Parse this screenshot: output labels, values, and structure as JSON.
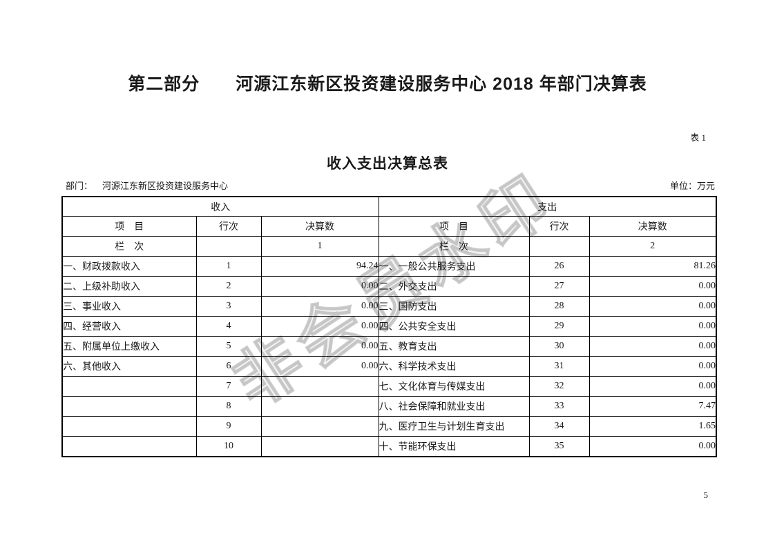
{
  "page": {
    "part_title": "第二部分　　河源江东新区投资建设服务中心 2018 年部门决算表",
    "table_label": "表 1",
    "table_title": "收入支出决算总表",
    "department_label": "部门：",
    "department_value": "河源江东新区投资建设服务中心",
    "unit_label": "单位：万元",
    "watermark": "非会员水印",
    "page_number": "5"
  },
  "table": {
    "income_header": "收入",
    "expenditure_header": "支出",
    "col_headers": {
      "item": "项　目",
      "line_no": "行次",
      "amount": "决算数"
    },
    "column_index_label": "栏　次",
    "income_col_index": "1",
    "expenditure_col_index": "2",
    "rows": [
      {
        "income_item": "一、财政拨款收入",
        "income_line": "1",
        "income_amount": "94.24",
        "exp_item": "一、一般公共服务支出",
        "exp_line": "26",
        "exp_amount": "81.26"
      },
      {
        "income_item": "二、上级补助收入",
        "income_line": "2",
        "income_amount": "0.00",
        "exp_item": "二、外交支出",
        "exp_line": "27",
        "exp_amount": "0.00"
      },
      {
        "income_item": "三、事业收入",
        "income_line": "3",
        "income_amount": "0.00",
        "exp_item": "三、国防支出",
        "exp_line": "28",
        "exp_amount": "0.00"
      },
      {
        "income_item": "四、经营收入",
        "income_line": "4",
        "income_amount": "0.00",
        "exp_item": "四、公共安全支出",
        "exp_line": "29",
        "exp_amount": "0.00"
      },
      {
        "income_item": "五、附属单位上缴收入",
        "income_line": "5",
        "income_amount": "0.00",
        "exp_item": "五、教育支出",
        "exp_line": "30",
        "exp_amount": "0.00"
      },
      {
        "income_item": "六、其他收入",
        "income_line": "6",
        "income_amount": "0.00",
        "exp_item": "六、科学技术支出",
        "exp_line": "31",
        "exp_amount": "0.00"
      },
      {
        "income_item": "",
        "income_line": "7",
        "income_amount": "",
        "exp_item": "七、文化体育与传媒支出",
        "exp_line": "32",
        "exp_amount": "0.00"
      },
      {
        "income_item": "",
        "income_line": "8",
        "income_amount": "",
        "exp_item": "八、社会保障和就业支出",
        "exp_line": "33",
        "exp_amount": "7.47"
      },
      {
        "income_item": "",
        "income_line": "9",
        "income_amount": "",
        "exp_item": "九、医疗卫生与计划生育支出",
        "exp_line": "34",
        "exp_amount": "1.65"
      },
      {
        "income_item": "",
        "income_line": "10",
        "income_amount": "",
        "exp_item": "十、节能环保支出",
        "exp_line": "35",
        "exp_amount": "0.00"
      }
    ]
  }
}
